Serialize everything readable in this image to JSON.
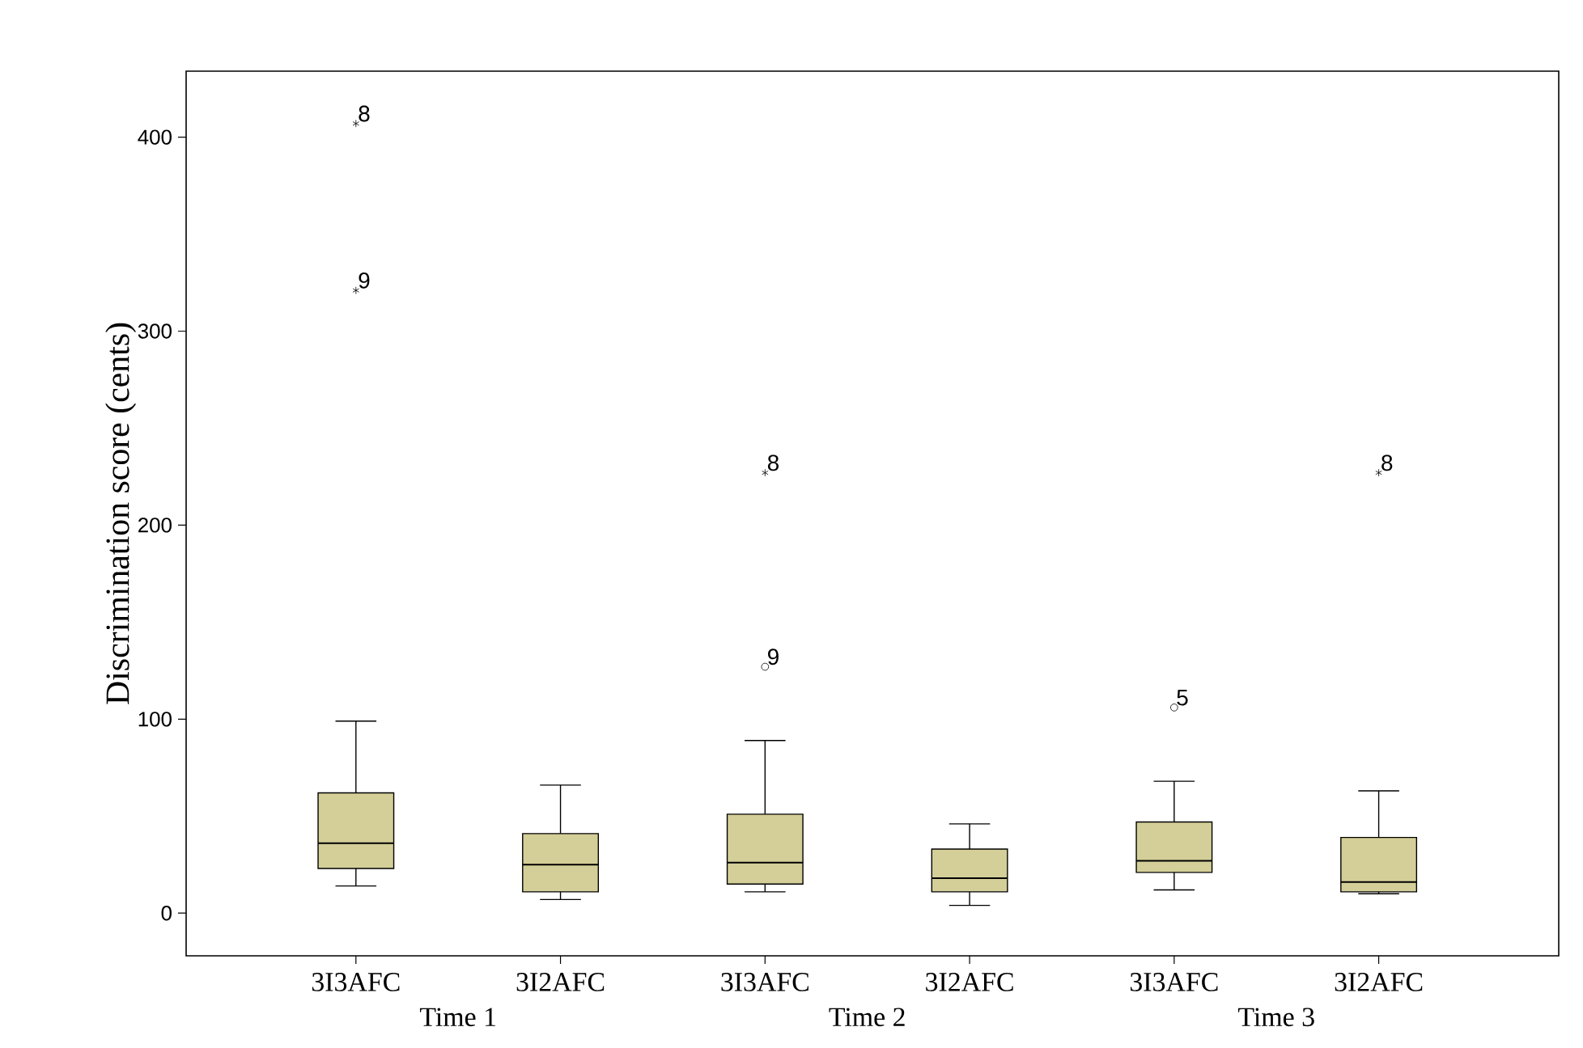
{
  "chart_data": {
    "type": "box",
    "ylabel": "Discrimination score (cents)",
    "categories": [
      "3I3AFC",
      "3I2AFC",
      "3I3AFC",
      "3I2AFC",
      "3I3AFC",
      "3I2AFC"
    ],
    "color": "#d4cf98",
    "boxes": [
      {
        "low": 14,
        "q1": 23,
        "median": 36,
        "q3": 62,
        "high": 99,
        "outliers": [
          407,
          321
        ]
      },
      {
        "low": 7,
        "q1": 11,
        "median": 25,
        "q3": 41,
        "high": 66
      },
      {
        "low": 11,
        "q1": 15,
        "median": 26,
        "q3": 51,
        "high": 89,
        "outliers": [
          227,
          127
        ]
      },
      {
        "low": 4,
        "q1": 11,
        "median": 18,
        "q3": 33,
        "high": 46
      },
      {
        "low": 12,
        "q1": 21,
        "median": 27,
        "q3": 47,
        "high": 68,
        "outliers": [
          106
        ]
      },
      {
        "low": 10,
        "q1": 11,
        "median": 16,
        "q3": 39,
        "high": 63,
        "outliers": [
          227
        ]
      }
    ],
    "ylim": [
      -22,
      434
    ],
    "yticks": [
      0,
      100,
      200,
      300,
      400
    ],
    "grid": false,
    "annotations": [
      "8",
      "9",
      "8",
      "9",
      "5",
      "8",
      "Time 1",
      "Time 2",
      "Time 3"
    ]
  }
}
